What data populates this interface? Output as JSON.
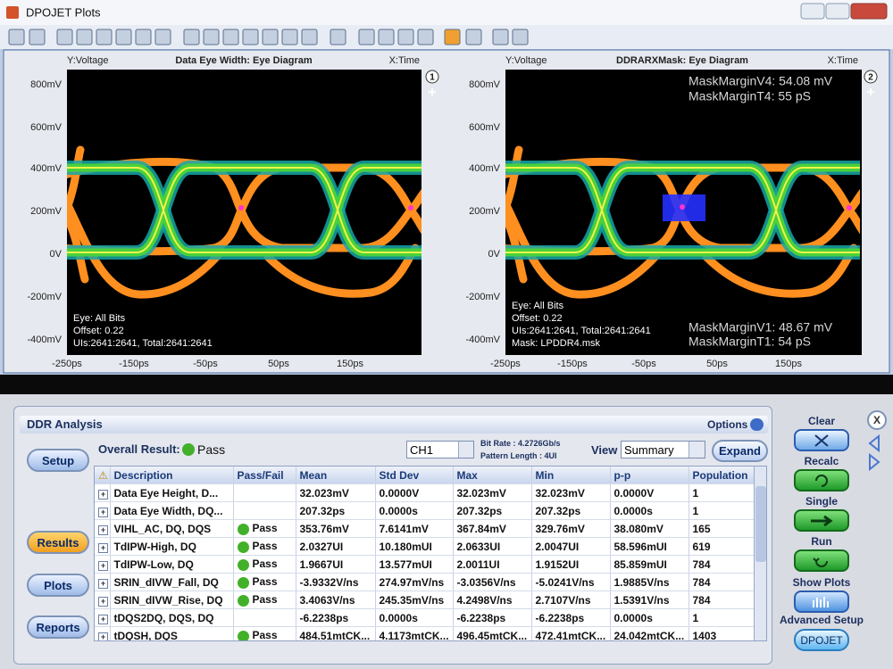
{
  "window": {
    "title": "DPOJET Plots"
  },
  "plots": [
    {
      "number": "1",
      "y_label": "Y:Voltage",
      "title": "Data Eye Width: Eye Diagram",
      "x_label": "X:Time",
      "yticks": [
        "800mV",
        "600mV",
        "400mV",
        "200mV",
        "0V",
        "-200mV",
        "-400mV"
      ],
      "xticks": [
        "-250ps",
        "-150ps",
        "-50ps",
        "50ps",
        "150ps"
      ],
      "info": [
        "Eye: All Bits",
        "Offset: 0.22",
        "UIs:2641:2641, Total:2641:2641"
      ]
    },
    {
      "number": "2",
      "y_label": "Y:Voltage",
      "title": "DDRARXMask: Eye Diagram",
      "x_label": "X:Time",
      "yticks": [
        "800mV",
        "600mV",
        "400mV",
        "200mV",
        "0V",
        "-200mV",
        "-400mV"
      ],
      "xticks": [
        "-250ps",
        "-150ps",
        "-50ps",
        "50ps",
        "150ps"
      ],
      "info": [
        "Eye: All Bits",
        "Offset: 0.22",
        "UIs:2641:2641, Total:2641:2641",
        "Mask: LPDDR4.msk"
      ],
      "annotations_top": [
        "MaskMarginV4: 54.08 mV",
        "MaskMarginT4: 55 pS"
      ],
      "annotations_bottom": [
        "MaskMarginV1: 48.67 mV",
        "MaskMarginT1: 54 pS"
      ]
    }
  ],
  "analysis": {
    "title": "DDR Analysis",
    "options": "Options",
    "overall_label": "Overall Result:",
    "overall_value": "Pass",
    "channel": "CH1",
    "bit_rate": "Bit Rate : 4.2726Gb/s",
    "pattern_length": "Pattern Length : 4UI",
    "view_label": "View",
    "view_value": "Summary",
    "expand": "Expand",
    "nav": [
      "Setup",
      "Results",
      "Plots",
      "Reports"
    ],
    "table": {
      "columns": [
        "Description",
        "Pass/Fail",
        "Mean",
        "Std Dev",
        "Max",
        "Min",
        "p-p",
        "Population"
      ],
      "rows": [
        [
          "Data Eye Height, D...",
          null,
          "32.023mV",
          "0.0000V",
          "32.023mV",
          "32.023mV",
          "0.0000V",
          "1"
        ],
        [
          "Data Eye Width, DQ...",
          null,
          "207.32ps",
          "0.0000s",
          "207.32ps",
          "207.32ps",
          "0.0000s",
          "1"
        ],
        [
          "VIHL_AC, DQ, DQS",
          "Pass",
          "353.76mV",
          "7.6141mV",
          "367.84mV",
          "329.76mV",
          "38.080mV",
          "165"
        ],
        [
          "TdIPW-High, DQ",
          "Pass",
          "2.0327UI",
          "10.180mUI",
          "2.0633UI",
          "2.0047UI",
          "58.596mUI",
          "619"
        ],
        [
          "TdIPW-Low, DQ",
          "Pass",
          "1.9667UI",
          "13.577mUI",
          "2.0011UI",
          "1.9152UI",
          "85.859mUI",
          "784"
        ],
        [
          "SRIN_dIVW_Fall, DQ",
          "Pass",
          "-3.9332V/ns",
          "274.97mV/ns",
          "-3.0356V/ns",
          "-5.0241V/ns",
          "1.9885V/ns",
          "784"
        ],
        [
          "SRIN_dIVW_Rise, DQ",
          "Pass",
          "3.4063V/ns",
          "245.35mV/ns",
          "4.2498V/ns",
          "2.7107V/ns",
          "1.5391V/ns",
          "784"
        ],
        [
          "tDQS2DQ, DQS, DQ",
          null,
          "-6.2238ps",
          "0.0000s",
          "-6.2238ps",
          "-6.2238ps",
          "0.0000s",
          "1"
        ],
        [
          "tDQSH, DQS",
          "Pass",
          "484.51mtCK...",
          "4.1173mtCK...",
          "496.45mtCK...",
          "472.41mtCK...",
          "24.042mtCK...",
          "1403"
        ]
      ]
    },
    "controls": [
      "Clear",
      "Recalc",
      "Single",
      "Run",
      "Show Plots",
      "Advanced Setup"
    ],
    "dpojet_button": "DPOJET",
    "close": "X"
  }
}
